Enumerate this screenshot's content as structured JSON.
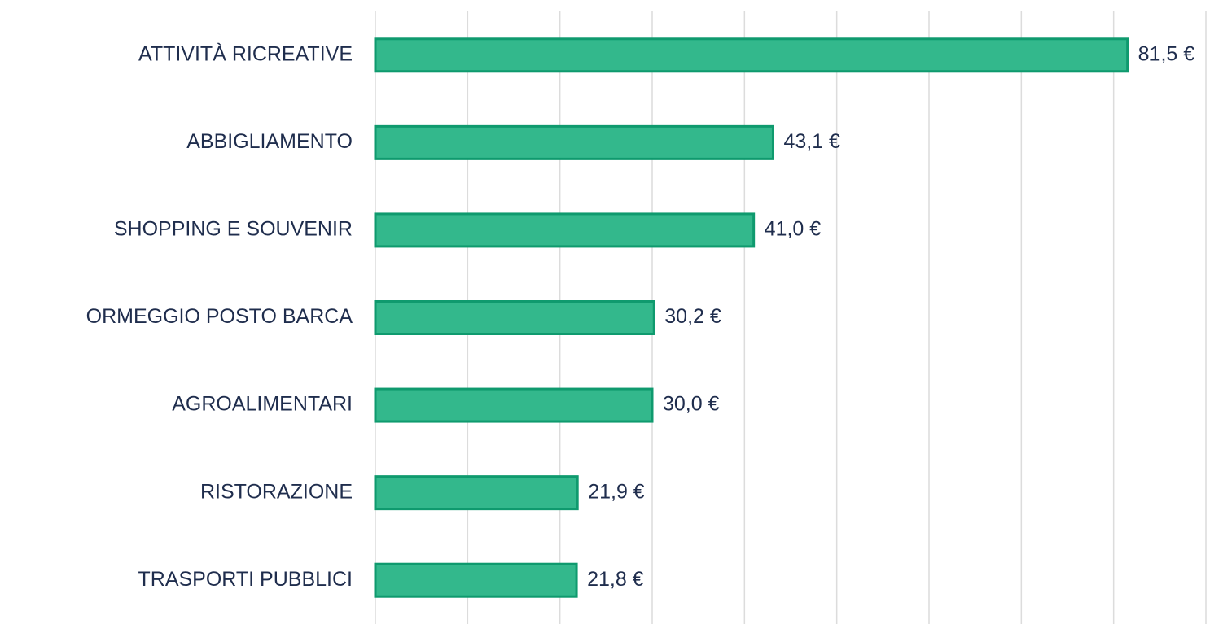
{
  "chart_data": {
    "type": "bar",
    "orientation": "horizontal",
    "categories": [
      "ATTIVITÀ RICREATIVE",
      "ABBIGLIAMENTO",
      "SHOPPING E SOUVENIR",
      "ORMEGGIO POSTO BARCA",
      "AGROALIMENTARI",
      "RISTORAZIONE",
      "TRASPORTI PUBBLICI"
    ],
    "values": [
      81.5,
      43.1,
      41.0,
      30.2,
      30.0,
      21.9,
      21.8
    ],
    "value_labels": [
      "81,5 €",
      "43,1 €",
      "41,0 €",
      "30,2 €",
      "30,0 €",
      "21,9 €",
      "21,8 €"
    ],
    "color": "#33b88c",
    "xlim": [
      0,
      90
    ],
    "xticks": [
      0,
      10,
      20,
      30,
      40,
      50,
      60,
      70,
      80,
      90
    ],
    "grid": true
  }
}
